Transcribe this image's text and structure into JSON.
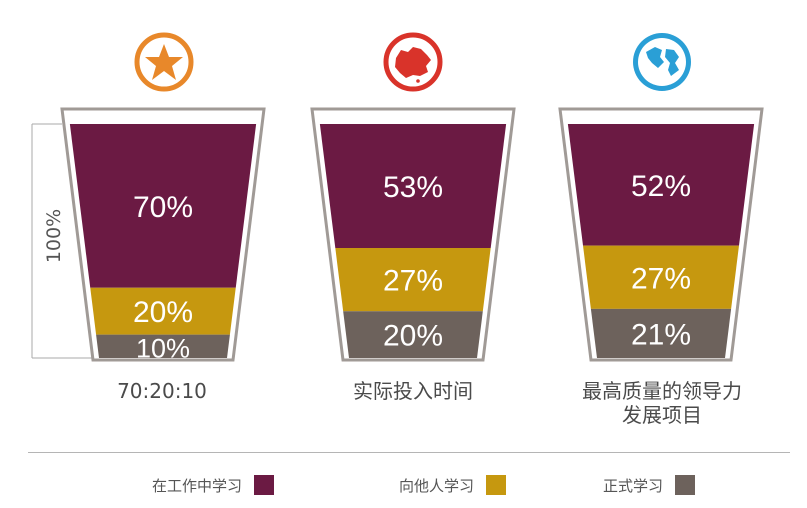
{
  "chart_data": {
    "type": "bar",
    "subtype": "stacked-100-percent-cups",
    "axis_label": "100%",
    "categories": [
      "70:20:10",
      "实际投入时间",
      "最高质量的领导力\n发展项目"
    ],
    "series": [
      {
        "name": "在工作中学习",
        "color": "#6b1a43",
        "values": [
          70,
          53,
          52
        ]
      },
      {
        "name": "向他人学习",
        "color": "#c6980f",
        "values": [
          20,
          27,
          27
        ]
      },
      {
        "name": "正式学习",
        "color": "#6d625c",
        "values": [
          10,
          20,
          21
        ]
      }
    ],
    "value_labels": [
      [
        "70%",
        "20%",
        "10%"
      ],
      [
        "53%",
        "27%",
        "20%"
      ],
      [
        "52%",
        "27%",
        "21%"
      ]
    ],
    "icons": [
      "star-icon",
      "china-map-icon",
      "globe-icon"
    ],
    "icon_colors": [
      "#e8882a",
      "#d9332a",
      "#2a9fd6"
    ],
    "legend_placement": "bottom"
  },
  "category_lines": [
    [
      "70:20:10"
    ],
    [
      "实际投入时间"
    ],
    [
      "最高质量的领导力",
      "发展项目"
    ]
  ],
  "legend": [
    {
      "label": "在工作中学习",
      "color": "#6b1a43"
    },
    {
      "label": "向他人学习",
      "color": "#c6980f"
    },
    {
      "label": "正式学习",
      "color": "#6d625c"
    }
  ]
}
